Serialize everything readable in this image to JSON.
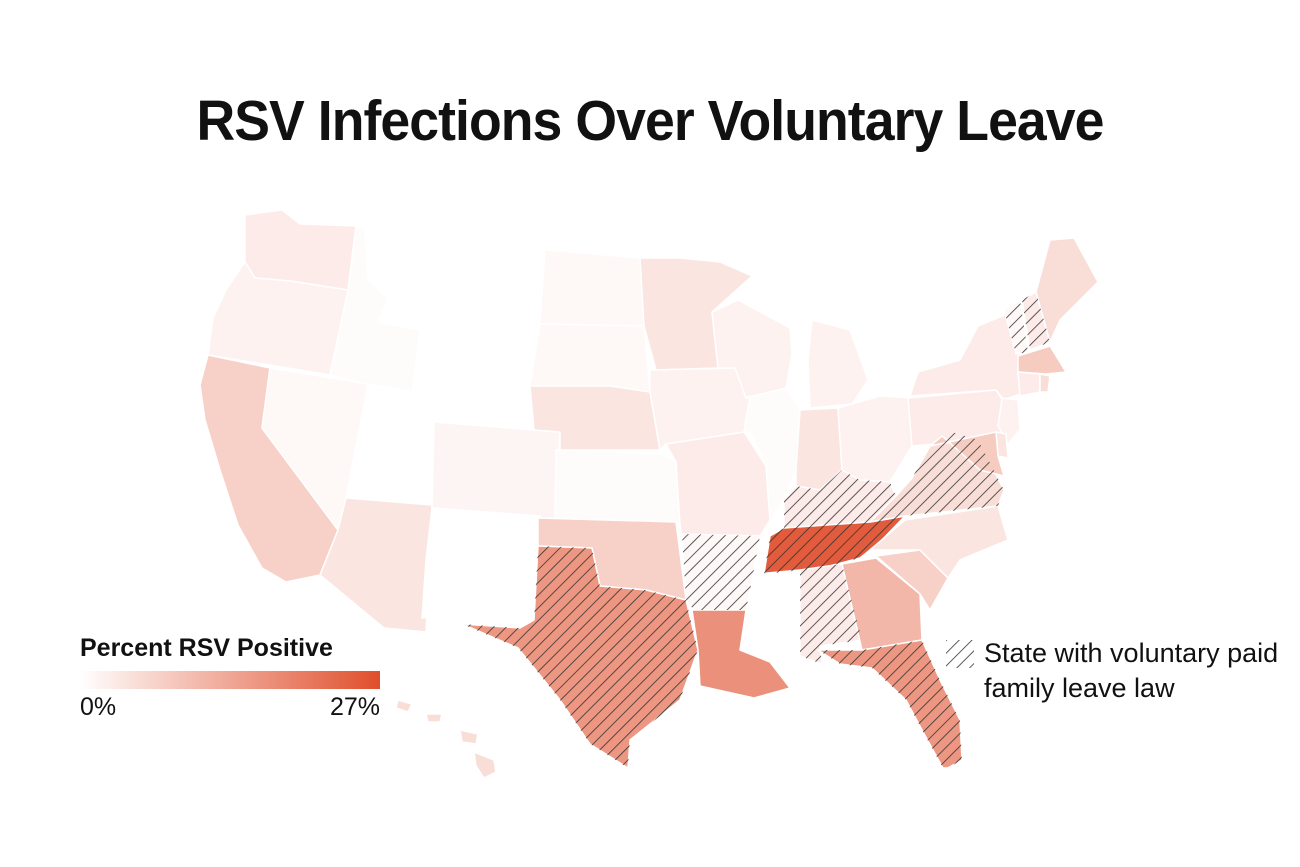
{
  "title": "RSV Infections Over Voluntary Leave",
  "legend": {
    "title": "Percent RSV Positive",
    "min_label": "0%",
    "max_label": "27%",
    "min_value": 0,
    "max_value": 27,
    "color_low": "#ffffff",
    "color_high": "#e04e2c"
  },
  "hatch_legend": {
    "label": "State with voluntary paid family leave law",
    "hatch_color": "#333333"
  },
  "chart_data": {
    "type": "choropleth",
    "region": "United States",
    "value_unit": "percent RSV positive",
    "scale": [
      0,
      27
    ],
    "states": [
      {
        "state": "WA",
        "value": 3
      },
      {
        "state": "OR",
        "value": 2
      },
      {
        "state": "CA",
        "value": 7
      },
      {
        "state": "ID",
        "value": 0.5
      },
      {
        "state": "NV",
        "value": 1
      },
      {
        "state": "MT",
        "value": 0
      },
      {
        "state": "WY",
        "value": 0
      },
      {
        "state": "UT",
        "value": 0
      },
      {
        "state": "AZ",
        "value": 4
      },
      {
        "state": "CO",
        "value": 1.5
      },
      {
        "state": "NM",
        "value": 0
      },
      {
        "state": "ND",
        "value": 1
      },
      {
        "state": "SD",
        "value": 1
      },
      {
        "state": "NE",
        "value": 4
      },
      {
        "state": "KS",
        "value": 0.5
      },
      {
        "state": "OK",
        "value": 7
      },
      {
        "state": "TX",
        "value": 16,
        "voluntary_leave": true
      },
      {
        "state": "MN",
        "value": 4
      },
      {
        "state": "IA",
        "value": 2
      },
      {
        "state": "MO",
        "value": 3
      },
      {
        "state": "AR",
        "value": 1,
        "voluntary_leave": true
      },
      {
        "state": "LA",
        "value": 17
      },
      {
        "state": "WI",
        "value": 2
      },
      {
        "state": "IL",
        "value": 0.5
      },
      {
        "state": "MI",
        "value": 2
      },
      {
        "state": "IN",
        "value": 4
      },
      {
        "state": "OH",
        "value": 2
      },
      {
        "state": "KY",
        "value": 3,
        "voluntary_leave": true
      },
      {
        "state": "TN",
        "value": 25,
        "voluntary_leave": true
      },
      {
        "state": "MS",
        "value": 0
      },
      {
        "state": "AL",
        "value": 3,
        "voluntary_leave": true
      },
      {
        "state": "GA",
        "value": 11
      },
      {
        "state": "FL",
        "value": 16,
        "voluntary_leave": true
      },
      {
        "state": "SC",
        "value": 7
      },
      {
        "state": "NC",
        "value": 4
      },
      {
        "state": "VA",
        "value": 5,
        "voluntary_leave": true
      },
      {
        "state": "WV",
        "value": 0
      },
      {
        "state": "PA",
        "value": 3
      },
      {
        "state": "NY",
        "value": 3
      },
      {
        "state": "VT",
        "value": 1,
        "voluntary_leave": true
      },
      {
        "state": "NH",
        "value": 3,
        "voluntary_leave": true
      },
      {
        "state": "ME",
        "value": 5
      },
      {
        "state": "MA",
        "value": 8
      },
      {
        "state": "CT",
        "value": 3
      },
      {
        "state": "RI",
        "value": 5
      },
      {
        "state": "NJ",
        "value": 2
      },
      {
        "state": "DE",
        "value": 4
      },
      {
        "state": "MD",
        "value": 8
      },
      {
        "state": "HI",
        "value": 5
      },
      {
        "state": "AK",
        "value": 0
      }
    ]
  }
}
